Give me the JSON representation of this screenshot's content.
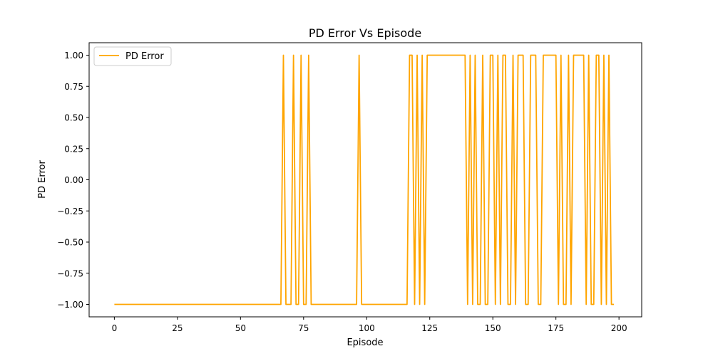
{
  "chart_data": {
    "type": "line",
    "title": "PD Error Vs Episode",
    "xlabel": "Episode",
    "ylabel": "PD Error",
    "xlim": [
      -10,
      209
    ],
    "ylim": [
      -1.1,
      1.1
    ],
    "x_ticks": [
      0,
      25,
      50,
      75,
      100,
      125,
      150,
      175,
      200
    ],
    "y_ticks": [
      -1.0,
      -0.75,
      -0.5,
      -0.25,
      0.0,
      0.25,
      0.5,
      0.75,
      1.0
    ],
    "x_tick_labels": [
      "0",
      "25",
      "50",
      "75",
      "100",
      "125",
      "150",
      "175",
      "200"
    ],
    "y_tick_labels": [
      "−1.00",
      "−0.75",
      "−0.50",
      "−0.25",
      "0.00",
      "0.25",
      "0.50",
      "0.75",
      "1.00"
    ],
    "grid": false,
    "legend_position": "upper-left",
    "series": [
      {
        "name": "PD Error",
        "color": "#ffa500",
        "x_start": 0,
        "x_step": 1,
        "values": [
          -1,
          -1,
          -1,
          -1,
          -1,
          -1,
          -1,
          -1,
          -1,
          -1,
          -1,
          -1,
          -1,
          -1,
          -1,
          -1,
          -1,
          -1,
          -1,
          -1,
          -1,
          -1,
          -1,
          -1,
          -1,
          -1,
          -1,
          -1,
          -1,
          -1,
          -1,
          -1,
          -1,
          -1,
          -1,
          -1,
          -1,
          -1,
          -1,
          -1,
          -1,
          -1,
          -1,
          -1,
          -1,
          -1,
          -1,
          -1,
          -1,
          -1,
          -1,
          -1,
          -1,
          -1,
          -1,
          -1,
          -1,
          -1,
          -1,
          -1,
          -1,
          -1,
          -1,
          -1,
          -1,
          -1,
          -1,
          1,
          -1,
          -1,
          -1,
          1,
          -1,
          -1,
          1,
          -1,
          -1,
          1,
          -1,
          -1,
          -1,
          -1,
          -1,
          -1,
          -1,
          -1,
          -1,
          -1,
          -1,
          -1,
          -1,
          -1,
          -1,
          -1,
          -1,
          -1,
          -1,
          1,
          -1,
          -1,
          -1,
          -1,
          -1,
          -1,
          -1,
          -1,
          -1,
          -1,
          -1,
          -1,
          -1,
          -1,
          -1,
          -1,
          -1,
          -1,
          -1,
          1,
          1,
          -1,
          1,
          -1,
          1,
          -1,
          1,
          1,
          1,
          1,
          1,
          1,
          1,
          1,
          1,
          1,
          1,
          1,
          1,
          1,
          1,
          1,
          -1,
          1,
          -1,
          1,
          -1,
          -1,
          1,
          -1,
          -1,
          1,
          1,
          -1,
          1,
          -1,
          1,
          1,
          -1,
          -1,
          1,
          -1,
          1,
          1,
          1,
          -1,
          -1,
          1,
          1,
          1,
          -1,
          -1,
          1,
          1,
          1,
          1,
          1,
          1,
          -1,
          1,
          -1,
          -1,
          1,
          -1,
          1,
          1,
          1,
          1,
          1,
          -1,
          1,
          -1,
          -1,
          1,
          1,
          -1,
          1,
          -1,
          1,
          -1,
          -1
        ]
      }
    ]
  }
}
